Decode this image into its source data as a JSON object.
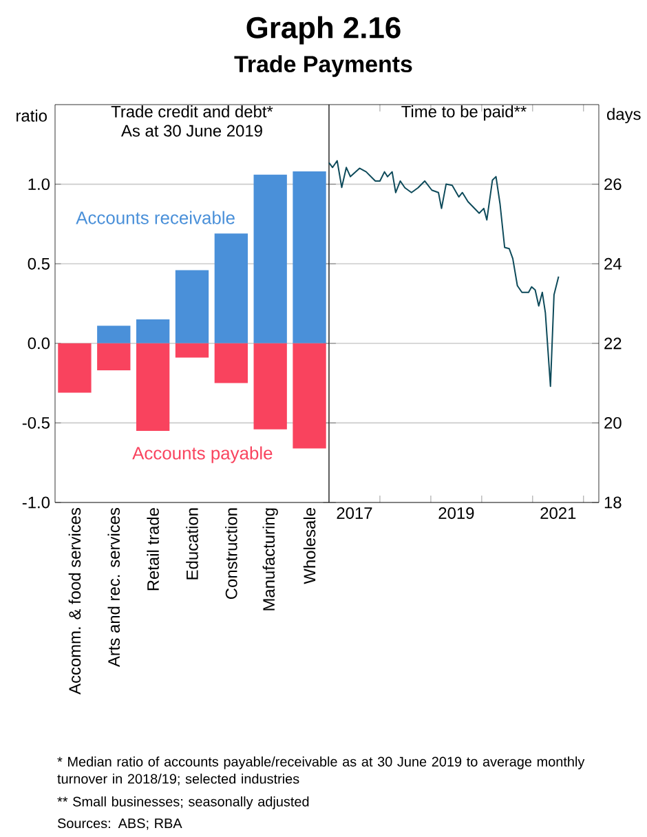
{
  "chart_data": [
    {
      "type": "bar",
      "title": "Trade credit and debt*",
      "subtitle": "As at 30 June 2019",
      "ylabel": "ratio",
      "categories": [
        "Accomm. & food services",
        "Arts and rec. services",
        "Retail trade",
        "Education",
        "Construction",
        "Manufacturing",
        "Wholesale"
      ],
      "series": [
        {
          "name": "Accounts receivable",
          "color": "#4a90d9",
          "values": [
            0.0,
            0.11,
            0.15,
            0.46,
            0.69,
            1.06,
            1.08
          ]
        },
        {
          "name": "Accounts payable",
          "color": "#f9435e",
          "values": [
            -0.31,
            -0.17,
            -0.55,
            -0.09,
            -0.25,
            -0.54,
            -0.66
          ]
        }
      ],
      "ylim": [
        -1,
        1.5
      ],
      "yticks": [
        {
          "value": -1,
          "label": "-1.0"
        },
        {
          "value": -0.5,
          "label": "-0.5"
        },
        {
          "value": 0,
          "label": "0.0"
        },
        {
          "value": 0.5,
          "label": "0.5"
        },
        {
          "value": 1,
          "label": "1.0"
        }
      ],
      "grid": "y",
      "stacked": true,
      "annotations": [
        "Graph 2.16",
        "Trade Payments",
        "*\tMedian ratio of accounts payable/receivable as at 30 June 2019 to average monthly turnover in 2018/19; selected industries",
        "**\tSmall businesses; seasonally adjusted",
        "Sources: ABS; RBA"
      ]
    },
    {
      "type": "line",
      "title": "Time to be paid**",
      "ylabel": "days",
      "x": [
        2017.0,
        2017.07,
        2017.16,
        2017.25,
        2017.34,
        2017.42,
        2017.6,
        2017.73,
        2017.91,
        2018.0,
        2018.09,
        2018.15,
        2018.24,
        2018.31,
        2018.4,
        2018.49,
        2018.62,
        2018.75,
        2018.88,
        2019.02,
        2019.15,
        2019.21,
        2019.3,
        2019.42,
        2019.55,
        2019.62,
        2019.73,
        2019.95,
        2020.04,
        2020.1,
        2020.21,
        2020.28,
        2020.36,
        2020.45,
        2020.54,
        2020.61,
        2020.7,
        2020.79,
        2020.92,
        2020.98,
        2021.05,
        2021.12,
        2021.19,
        2021.25,
        2021.35,
        2021.42,
        2021.51
      ],
      "series": [
        {
          "color": "#0d4a5a",
          "values": [
            26.54,
            26.42,
            26.59,
            25.92,
            26.42,
            26.19,
            26.4,
            26.31,
            26.08,
            26.08,
            26.31,
            26.19,
            26.31,
            25.79,
            26.08,
            25.91,
            25.79,
            25.91,
            26.08,
            25.85,
            25.79,
            25.39,
            26.0,
            25.97,
            25.68,
            25.79,
            25.56,
            25.27,
            25.39,
            25.1,
            26.1,
            26.19,
            25.5,
            24.41,
            24.38,
            24.13,
            23.45,
            23.28,
            23.28,
            23.42,
            23.34,
            22.94,
            23.28,
            22.77,
            20.92,
            23.22,
            23.68
          ]
        }
      ],
      "xlim": [
        2017,
        2022.3
      ],
      "xticks": [
        {
          "value": 2017.5,
          "label": "2017"
        },
        {
          "value": 2018,
          "label": null
        },
        {
          "value": 2019,
          "label": null
        },
        {
          "value": 2019.5,
          "label": "2019"
        },
        {
          "value": 2020,
          "label": null
        },
        {
          "value": 2021,
          "label": null
        },
        {
          "value": 2021.5,
          "label": "2021"
        },
        {
          "value": 2022,
          "label": null
        }
      ],
      "ylim": [
        18,
        28
      ],
      "yticks": [
        18,
        20,
        22,
        24,
        26
      ],
      "grid": "y"
    }
  ]
}
